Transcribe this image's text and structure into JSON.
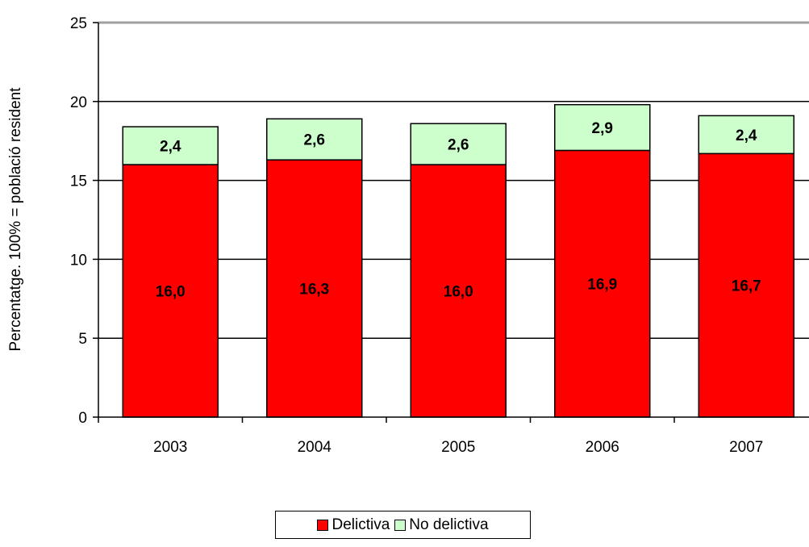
{
  "chart_data": {
    "type": "bar",
    "stacked": true,
    "categories": [
      "2003",
      "2004",
      "2005",
      "2006",
      "2007"
    ],
    "series": [
      {
        "name": "Delictiva",
        "color": "#ff0000",
        "values": [
          16.0,
          16.3,
          16.0,
          16.9,
          16.7
        ],
        "labels": [
          "16,0",
          "16,3",
          "16,0",
          "16,9",
          "16,7"
        ]
      },
      {
        "name": "No delictiva",
        "color": "#ccffcc",
        "values": [
          2.4,
          2.6,
          2.6,
          2.9,
          2.4
        ],
        "labels": [
          "2,4",
          "2,6",
          "2,6",
          "2,9",
          "2,4"
        ]
      }
    ],
    "ylabel": "Percentatge. 100% = població resident",
    "ylim": [
      0,
      25
    ],
    "yticks": [
      "0",
      "5",
      "10",
      "15",
      "20",
      "25"
    ],
    "grid": true,
    "legend_position": "bottom"
  }
}
